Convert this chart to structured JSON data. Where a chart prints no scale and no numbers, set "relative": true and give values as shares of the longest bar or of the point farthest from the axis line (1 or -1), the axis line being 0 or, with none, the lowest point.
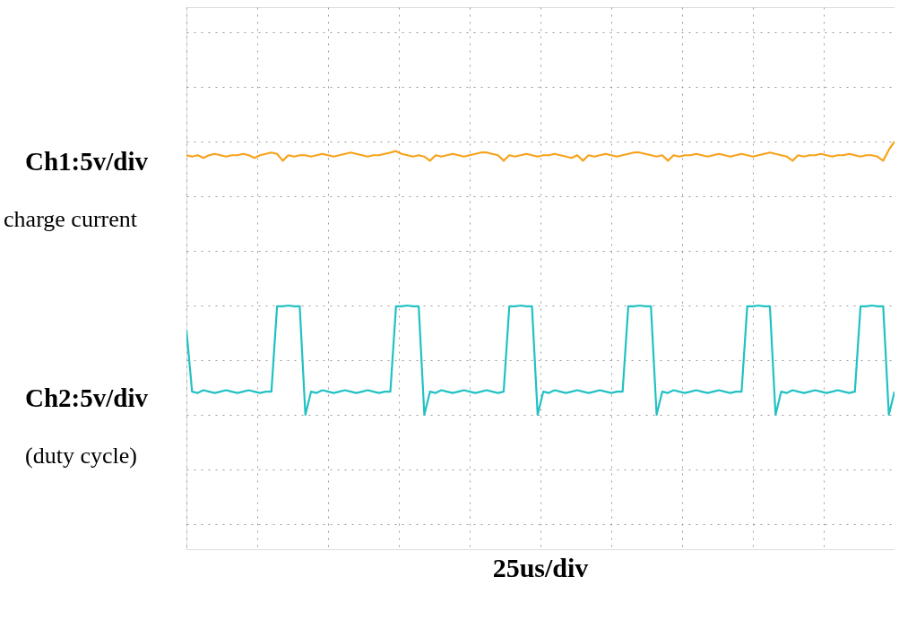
{
  "chart_data": {
    "type": "line",
    "relative": true,
    "categories": [
      null,
      null,
      null,
      null,
      null,
      null,
      null,
      null,
      null,
      null,
      null,
      null,
      null,
      null,
      null,
      null,
      null,
      null,
      null,
      null,
      null,
      null,
      null,
      null,
      null,
      null,
      null,
      null,
      null,
      null,
      null,
      null,
      null,
      null,
      null,
      null,
      null,
      null,
      null,
      null,
      null,
      null,
      null,
      null,
      null,
      null,
      null,
      null,
      null,
      null,
      null,
      null,
      null,
      null,
      null,
      null,
      null,
      null,
      null,
      null,
      null,
      null,
      null,
      null,
      null,
      null,
      null,
      null,
      null,
      null,
      null,
      null,
      null,
      null,
      null,
      null,
      null,
      null,
      null,
      null,
      null,
      null,
      null,
      null,
      null,
      null,
      null,
      null,
      null,
      null,
      null,
      null,
      null,
      null,
      null,
      null,
      null,
      null,
      null,
      null,
      null,
      null,
      null,
      null,
      null,
      null,
      null,
      null,
      null,
      null,
      null,
      null,
      null,
      null,
      null,
      null,
      null,
      null,
      null,
      null,
      null,
      null,
      null,
      null,
      null,
      null
    ],
    "grid": true,
    "line_style": "solid",
    "marker": "none",
    "annotations": [
      "charge current",
      "(duty cycle)",
      "25us/div"
    ],
    "series": [
      {
        "name": "Ch1:5v/div",
        "color": "#f7a21b",
        "values": [
          0.95,
          0.945,
          0.95,
          0.94,
          0.95,
          0.955,
          0.95,
          0.945,
          0.95,
          0.95,
          0.955,
          0.95,
          0.94,
          0.95,
          0.955,
          0.96,
          0.955,
          0.93,
          0.95,
          0.945,
          0.95,
          0.95,
          0.945,
          0.95,
          0.955,
          0.95,
          0.945,
          0.95,
          0.955,
          0.96,
          0.955,
          0.95,
          0.945,
          0.95,
          0.95,
          0.955,
          0.96,
          0.965,
          0.955,
          0.95,
          0.945,
          0.95,
          0.945,
          0.93,
          0.95,
          0.945,
          0.95,
          0.955,
          0.95,
          0.945,
          0.95,
          0.955,
          0.96,
          0.96,
          0.955,
          0.95,
          0.93,
          0.95,
          0.945,
          0.95,
          0.955,
          0.95,
          0.945,
          0.95,
          0.95,
          0.955,
          0.95,
          0.945,
          0.94,
          0.95,
          0.93,
          0.95,
          0.945,
          0.95,
          0.955,
          0.95,
          0.945,
          0.95,
          0.955,
          0.96,
          0.96,
          0.955,
          0.95,
          0.945,
          0.95,
          0.93,
          0.95,
          0.945,
          0.95,
          0.95,
          0.955,
          0.95,
          0.945,
          0.95,
          0.955,
          0.95,
          0.945,
          0.95,
          0.955,
          0.95,
          0.945,
          0.95,
          0.955,
          0.96,
          0.955,
          0.95,
          0.945,
          0.93,
          0.95,
          0.945,
          0.95,
          0.95,
          0.955,
          0.95,
          0.945,
          0.95,
          0.95,
          0.955,
          0.95,
          0.945,
          0.95,
          0.95,
          0.945,
          0.93,
          0.97,
          1
        ]
      },
      {
        "name": "Ch2:5v/div",
        "color": "#22c1c3",
        "values": [
          0.31,
          0.085,
          0.08,
          0.09,
          0.085,
          0.08,
          0.085,
          0.09,
          0.085,
          0.08,
          0.085,
          0.09,
          0.085,
          0.08,
          0.085,
          0.085,
          0.397,
          0.397,
          0.4,
          0.397,
          0.397,
          0,
          0.085,
          0.08,
          0.09,
          0.085,
          0.08,
          0.085,
          0.09,
          0.085,
          0.08,
          0.085,
          0.09,
          0.085,
          0.08,
          0.085,
          0.085,
          0.397,
          0.397,
          0.4,
          0.397,
          0.397,
          0,
          0.085,
          0.08,
          0.09,
          0.085,
          0.08,
          0.085,
          0.09,
          0.085,
          0.08,
          0.085,
          0.09,
          0.085,
          0.08,
          0.085,
          0.397,
          0.397,
          0.4,
          0.397,
          0.397,
          0,
          0.085,
          0.08,
          0.09,
          0.085,
          0.08,
          0.085,
          0.09,
          0.085,
          0.08,
          0.085,
          0.09,
          0.085,
          0.08,
          0.085,
          0.085,
          0.397,
          0.397,
          0.4,
          0.397,
          0.397,
          0,
          0.085,
          0.08,
          0.09,
          0.085,
          0.08,
          0.085,
          0.09,
          0.085,
          0.08,
          0.085,
          0.09,
          0.085,
          0.08,
          0.085,
          0.085,
          0.397,
          0.397,
          0.4,
          0.397,
          0.397,
          0,
          0.085,
          0.08,
          0.09,
          0.085,
          0.08,
          0.085,
          0.09,
          0.085,
          0.08,
          0.085,
          0.09,
          0.085,
          0.08,
          0.085,
          0.397,
          0.397,
          0.4,
          0.397,
          0.397,
          0,
          0.085
        ]
      }
    ]
  }
}
